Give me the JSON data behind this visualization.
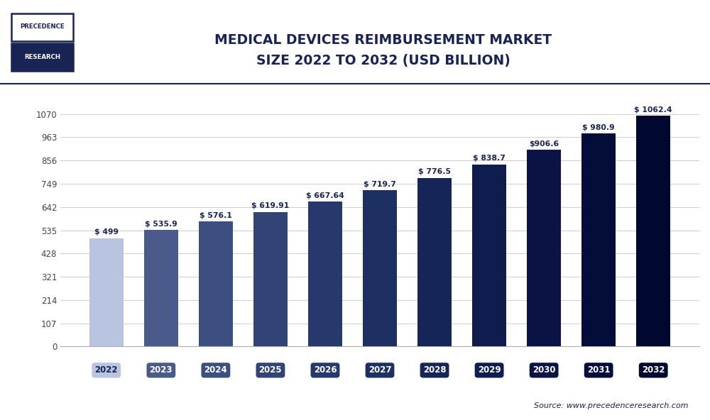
{
  "title_line1": "MEDICAL DEVICES REIMBURSEMENT MARKET",
  "title_line2": "SIZE 2022 TO 2032 (USD BILLION)",
  "categories": [
    "2022",
    "2023",
    "2024",
    "2025",
    "2026",
    "2027",
    "2028",
    "2029",
    "2030",
    "2031",
    "2032"
  ],
  "values": [
    499,
    535.9,
    576.1,
    619.91,
    667.64,
    719.7,
    776.5,
    838.7,
    906.6,
    980.9,
    1062.4
  ],
  "labels": [
    "$ 499",
    "$ 535.9",
    "$ 576.1",
    "$ 619.91",
    "$ 667.64",
    "$ 719.7",
    "$ 776.5",
    "$ 838.7",
    "$906.6",
    "$ 980.9",
    "$ 1062.4"
  ],
  "bar_colors": [
    "#b8c4e0",
    "#4a5a8a",
    "#3d4f80",
    "#324476",
    "#27396c",
    "#1e2f62",
    "#162558",
    "#0f1c4e",
    "#091444",
    "#040d3a",
    "#010830"
  ],
  "yticks": [
    0,
    107,
    214,
    321,
    428,
    535,
    642,
    749,
    856,
    963,
    1070
  ],
  "ylim": [
    0,
    1150
  ],
  "background_color": "#ffffff",
  "grid_color": "#d0d0d0",
  "source_text": "Source: www.precedenceresearch.com",
  "title_color": "#1a2454",
  "label_color": "#1a2454",
  "tick_label_text_colors": [
    "#1a2454",
    "#ffffff",
    "#ffffff",
    "#ffffff",
    "#ffffff",
    "#ffffff",
    "#ffffff",
    "#ffffff",
    "#ffffff",
    "#ffffff",
    "#ffffff"
  ],
  "logo_text1": "PRECEDENCE",
  "logo_text2": "RESEARCH"
}
